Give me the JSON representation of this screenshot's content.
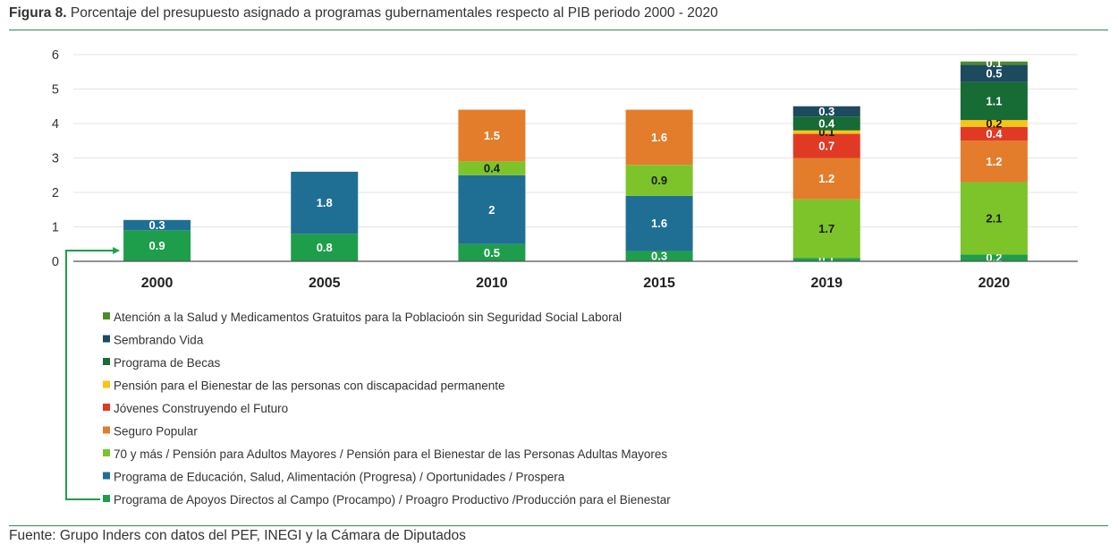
{
  "figure": {
    "label": "Figura 8.",
    "title": "Porcentaje del presupuesto asignado a programas gubernamentales respecto al PIB periodo 2000 - 2020",
    "source": "Fuente: Grupo Inders con datos del PEF, INEGI y la Cámara de Diputados"
  },
  "chart_data": {
    "type": "bar",
    "stacked": true,
    "categories": [
      "2000",
      "2005",
      "2010",
      "2015",
      "2019",
      "2020"
    ],
    "ylim": [
      0,
      6
    ],
    "yticks": [
      0,
      1,
      2,
      3,
      4,
      5,
      6
    ],
    "grid": true,
    "legend_position": "bottom",
    "series": [
      {
        "name": "Programa de Apoyos Directos al Campo (Procampo) / Proagro Productivo /Producción para el Bienestar",
        "color": "#1e9e4a",
        "values": [
          0.9,
          0.8,
          0.5,
          0.3,
          0.1,
          0.2
        ],
        "labels": [
          "0.9",
          "0.8",
          "0.5",
          "0.3",
          "0.1",
          "0.2"
        ]
      },
      {
        "name": "Programa de Educación, Salud, Alimentación (Progresa) / Oportunidades / Prospera",
        "color": "#1f6f95",
        "values": [
          0.3,
          1.8,
          2.0,
          1.6,
          0,
          0
        ],
        "labels": [
          "0.3",
          "1.8",
          "2",
          "1.6",
          "",
          ""
        ]
      },
      {
        "name": "70 y más / Pensión para Adultos Mayores / Pensión para el Bienestar de las Personas Adultas Mayores",
        "color": "#7cc42a",
        "values": [
          0,
          0,
          0.4,
          0.9,
          1.7,
          2.1
        ],
        "labels": [
          "",
          "",
          "0.4",
          "0.9",
          "1.7",
          "2.1"
        ]
      },
      {
        "name": "Seguro Popular",
        "color": "#e37d2b",
        "values": [
          0,
          0,
          1.5,
          1.6,
          1.2,
          1.2
        ],
        "labels": [
          "",
          "",
          "1.5",
          "1.6",
          "1.2",
          "1.2"
        ]
      },
      {
        "name": "Jóvenes Construyendo el Futuro",
        "color": "#e03a25",
        "values": [
          0,
          0,
          0,
          0,
          0.7,
          0.4
        ],
        "labels": [
          "",
          "",
          "",
          "",
          "0.7",
          "0.4"
        ]
      },
      {
        "name": "Pensión para el Bienestar de las personas con discapacidad permanente",
        "color": "#f5c518",
        "values": [
          0,
          0,
          0,
          0,
          0.1,
          0.2
        ],
        "labels": [
          "",
          "",
          "",
          "",
          "0.1",
          "0.2"
        ]
      },
      {
        "name": "Programa de Becas",
        "color": "#176b35",
        "values": [
          0,
          0,
          0,
          0,
          0.4,
          1.1
        ],
        "labels": [
          "",
          "",
          "",
          "",
          "0.4",
          "1.1"
        ]
      },
      {
        "name": "Sembrando Vida",
        "color": "#1d4a5e",
        "values": [
          0,
          0,
          0,
          0,
          0.3,
          0.5
        ],
        "labels": [
          "",
          "",
          "",
          "",
          "0.3",
          "0.5"
        ]
      },
      {
        "name": "Atención a la Salud y Medicamentos Gratuitos para la Poblacioón sin Seguridad Social Laboral",
        "color": "#4e8a2c",
        "values": [
          0,
          0,
          0,
          0,
          0,
          0.1
        ],
        "labels": [
          "",
          "",
          "",
          "",
          "",
          "0.1"
        ]
      }
    ]
  }
}
